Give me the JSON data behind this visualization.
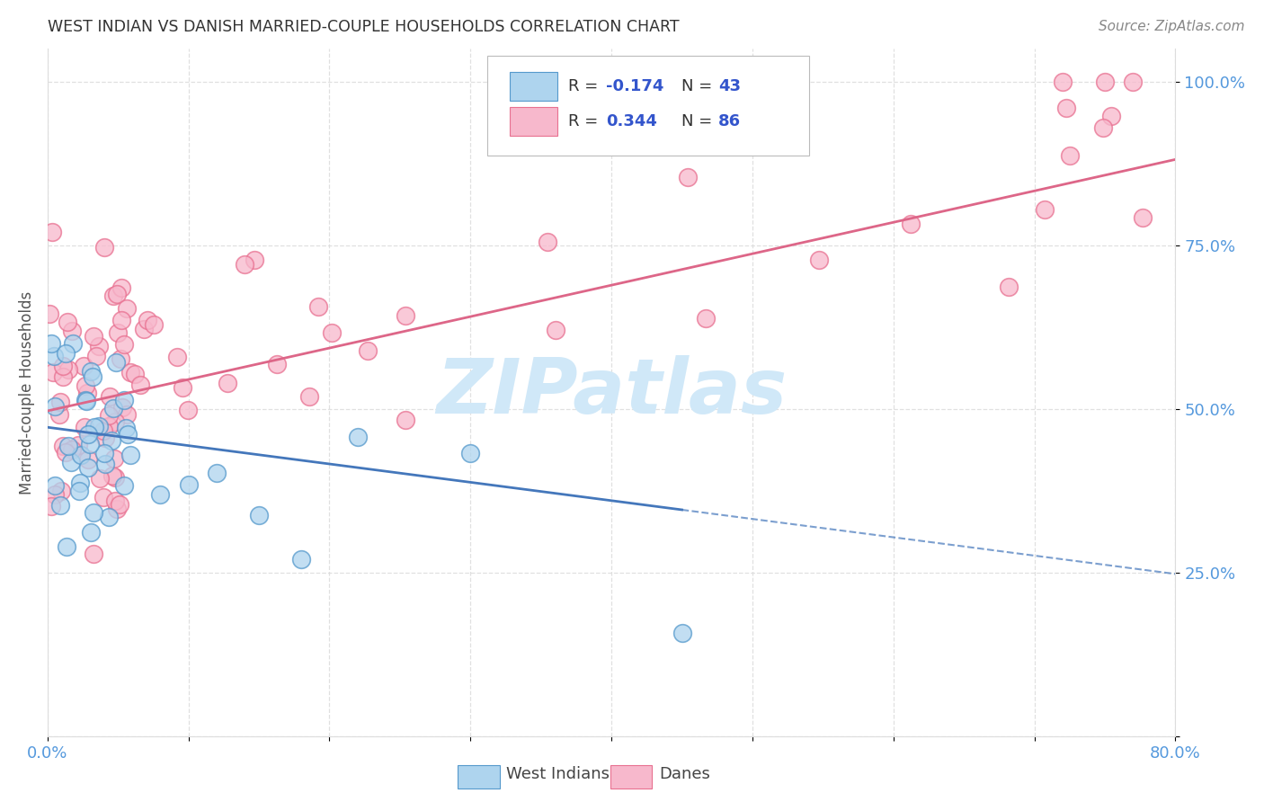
{
  "title": "WEST INDIAN VS DANISH MARRIED-COUPLE HOUSEHOLDS CORRELATION CHART",
  "source": "Source: ZipAtlas.com",
  "ylabel": "Married-couple Households",
  "xlim": [
    0.0,
    0.8
  ],
  "ylim": [
    0.0,
    1.05
  ],
  "xtick_positions": [
    0.0,
    0.1,
    0.2,
    0.3,
    0.4,
    0.5,
    0.6,
    0.7,
    0.8
  ],
  "xticklabels": [
    "0.0%",
    "",
    "",
    "",
    "",
    "",
    "",
    "",
    "80.0%"
  ],
  "ytick_positions": [
    0.0,
    0.25,
    0.5,
    0.75,
    1.0
  ],
  "yticklabels": [
    "",
    "25.0%",
    "50.0%",
    "75.0%",
    "100.0%"
  ],
  "blue_color": "#aed4ee",
  "pink_color": "#f7b8cc",
  "blue_edge_color": "#5599cc",
  "pink_edge_color": "#e87090",
  "blue_line_color": "#4477bb",
  "pink_line_color": "#dd6688",
  "legend_r_blue": "-0.174",
  "legend_n_blue": "43",
  "legend_r_pink": "0.344",
  "legend_n_pink": "86",
  "watermark_color": "#d0e8f8",
  "tick_label_color": "#5599dd",
  "grid_color": "#dddddd",
  "title_color": "#333333",
  "ylabel_color": "#555555",
  "source_color": "#888888",
  "wi_intercept": 0.472,
  "wi_slope": -0.28,
  "danes_intercept": 0.497,
  "danes_slope": 0.48
}
